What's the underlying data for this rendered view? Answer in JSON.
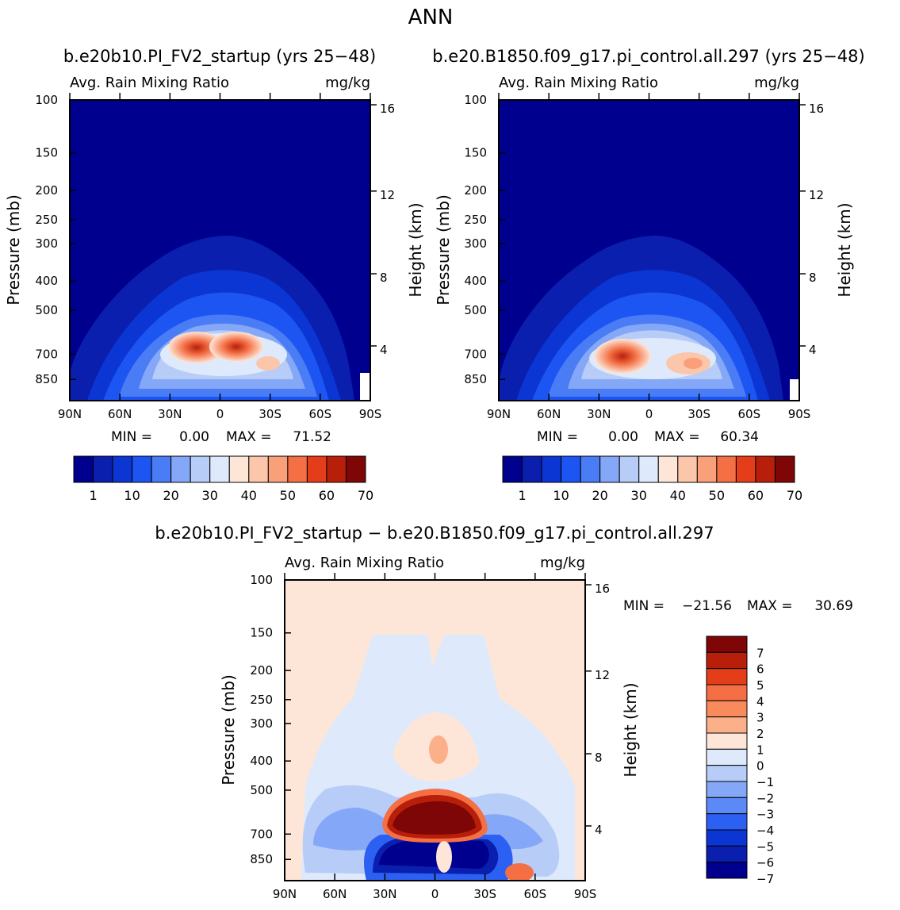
{
  "page_title": "ANN",
  "chart_data": [
    {
      "id": "panel-test",
      "type": "contour",
      "title": "b.e20b10.PI_FV2_startup (yrs 25−48)",
      "subtitle_left": "Avg. Rain Mixing Ratio",
      "subtitle_right": "mg/kg",
      "ylabel": "Pressure (mb)",
      "y2label": "Height (km)",
      "xticks": [
        "90N",
        "60N",
        "30N",
        "0",
        "30S",
        "60S",
        "90S"
      ],
      "yticks": [
        "100",
        "150",
        "200",
        "250",
        "300",
        "400",
        "500",
        "700",
        "850"
      ],
      "y2ticks": [
        "16",
        "12",
        "8",
        "4"
      ],
      "min_label": "MIN =",
      "min_value": "0.00",
      "max_label": "MAX =",
      "max_value": "71.52",
      "colorbar_labels": [
        "1",
        "10",
        "20",
        "30",
        "40",
        "50",
        "60",
        "70"
      ],
      "colors": [
        "#00008f",
        "#0a1fae",
        "#0b36d4",
        "#1c55f2",
        "#4a7cf6",
        "#85a7f7",
        "#b7cdf8",
        "#deeafb",
        "#fde6d8",
        "#fbc6aa",
        "#f9a07a",
        "#f46f44",
        "#e43d1a",
        "#b81f0b",
        "#7e0606"
      ]
    },
    {
      "id": "panel-control",
      "type": "contour",
      "title": "b.e20.B1850.f09_g17.pi_control.all.297 (yrs 25−48)",
      "subtitle_left": "Avg. Rain Mixing Ratio",
      "subtitle_right": "mg/kg",
      "ylabel": "Pressure (mb)",
      "y2label": "Height (km)",
      "xticks": [
        "90N",
        "60N",
        "30N",
        "0",
        "30S",
        "60S",
        "90S"
      ],
      "yticks": [
        "100",
        "150",
        "200",
        "250",
        "300",
        "400",
        "500",
        "700",
        "850"
      ],
      "y2ticks": [
        "16",
        "12",
        "8",
        "4"
      ],
      "min_label": "MIN =",
      "min_value": "0.00",
      "max_label": "MAX =",
      "max_value": "60.34",
      "colorbar_labels": [
        "1",
        "10",
        "20",
        "30",
        "40",
        "50",
        "60",
        "70"
      ],
      "colors": [
        "#00008f",
        "#0a1fae",
        "#0b36d4",
        "#1c55f2",
        "#4a7cf6",
        "#85a7f7",
        "#b7cdf8",
        "#deeafb",
        "#fde6d8",
        "#fbc6aa",
        "#f9a07a",
        "#f46f44",
        "#e43d1a",
        "#b81f0b",
        "#7e0606"
      ]
    },
    {
      "id": "panel-diff",
      "type": "contour",
      "title": "b.e20b10.PI_FV2_startup − b.e20.B1850.f09_g17.pi_control.all.297",
      "subtitle_left": "Avg. Rain Mixing Ratio",
      "subtitle_right": "mg/kg",
      "ylabel": "Pressure (mb)",
      "y2label": "Height (km)",
      "xticks": [
        "90N",
        "60N",
        "30N",
        "0",
        "30S",
        "60S",
        "90S"
      ],
      "yticks": [
        "100",
        "150",
        "200",
        "250",
        "300",
        "400",
        "500",
        "700",
        "850"
      ],
      "y2ticks": [
        "16",
        "12",
        "8",
        "4"
      ],
      "min_label": "MIN =",
      "min_value": "−21.56",
      "max_label": "MAX =",
      "max_value": "30.69",
      "colorbar_labels": [
        "7",
        "6",
        "5",
        "4",
        "3",
        "2",
        "1",
        "0",
        "−1",
        "−2",
        "−3",
        "−4",
        "−5",
        "−6",
        "−7"
      ],
      "colors": [
        "#7e0606",
        "#b81f0b",
        "#e43d1a",
        "#f46f44",
        "#f98a5c",
        "#fbb08a",
        "#fde6d8",
        "#deeafb",
        "#b7cdf8",
        "#85a7f7",
        "#5b8af6",
        "#2c60f2",
        "#0b36d4",
        "#0a1fae",
        "#00008f"
      ]
    }
  ]
}
